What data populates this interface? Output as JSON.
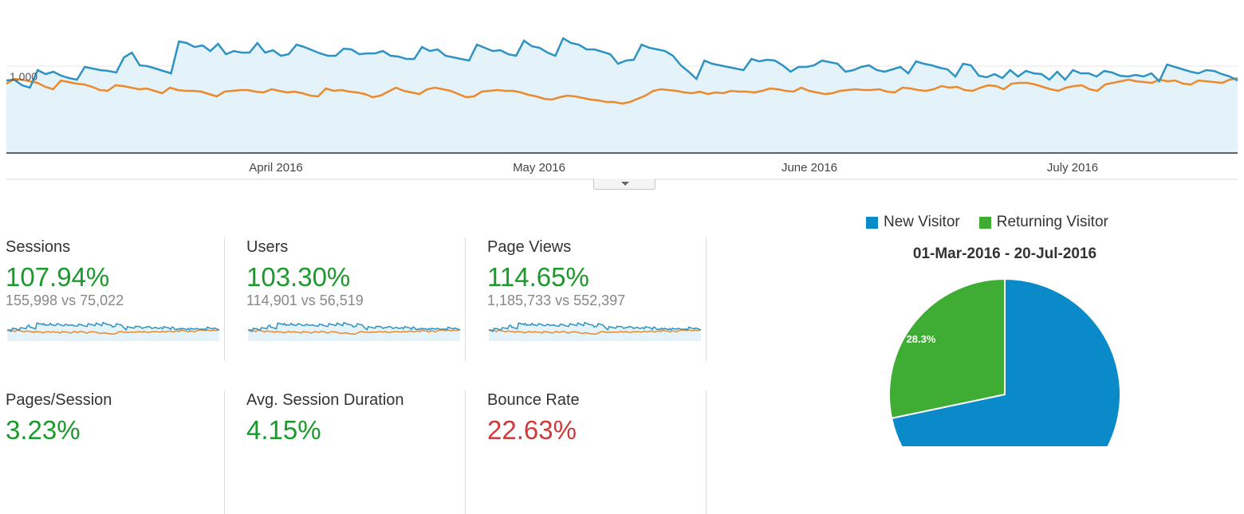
{
  "colors": {
    "new_series": "#2e93c4",
    "new_fill": "#e4f2f9",
    "compare_series": "#ea8a2e",
    "pie_new": "#0a8ac8",
    "pie_returning": "#3fac34",
    "positive": "#1a9a2a",
    "negative": "#d13a3a"
  },
  "chart_data": {
    "type": "line",
    "x_tick_labels": [
      "April 2016",
      "May 2016",
      "June 2016",
      "July 2016"
    ],
    "y_tick_labels": [
      "1,000"
    ],
    "series": [
      {
        "values": [
          990,
          1000,
          930,
          900,
          1120,
          1070,
          1100,
          1050,
          1020,
          1000,
          1160,
          1140,
          1120,
          1110,
          1090,
          1280,
          1340,
          1180,
          1170,
          1140,
          1110,
          1080,
          1480,
          1460,
          1410,
          1430,
          1360,
          1450,
          1320,
          1360,
          1340,
          1340,
          1460,
          1340,
          1370,
          1300,
          1320,
          1440,
          1410,
          1370,
          1330,
          1300,
          1300,
          1390,
          1380,
          1320,
          1330,
          1330,
          1360,
          1300,
          1290,
          1260,
          1260,
          1410,
          1360,
          1380,
          1300,
          1280,
          1260,
          1240,
          1440,
          1400,
          1360,
          1370,
          1320,
          1300,
          1490,
          1420,
          1400,
          1340,
          1300,
          1520,
          1460,
          1440,
          1380,
          1380,
          1350,
          1320,
          1200,
          1240,
          1250,
          1440,
          1400,
          1380,
          1360,
          1300,
          1180,
          1100,
          1010,
          1240,
          1200,
          1180,
          1160,
          1140,
          1120,
          1260,
          1230,
          1250,
          1240,
          1180,
          1100,
          1160,
          1160,
          1180,
          1240,
          1220,
          1200,
          1100,
          1120,
          1160,
          1180,
          1120,
          1100,
          1130,
          1160,
          1080,
          1230,
          1200,
          1180,
          1150,
          1130,
          1040,
          1200,
          1180,
          1050,
          1030,
          1070,
          1020,
          1120,
          1040,
          1110,
          1080,
          1070,
          1000,
          1100,
          1000,
          1120,
          1080,
          1080,
          1040,
          1110,
          1090,
          1050,
          1040,
          1060,
          1040,
          1080,
          980,
          1190,
          1160,
          1130,
          1100,
          1080,
          1120,
          1110,
          1070,
          1040,
          990
        ],
        "color": "#2e93c4"
      },
      {
        "values": [
          950,
          1010,
          1000,
          980,
          960,
          910,
          880,
          990,
          970,
          950,
          940,
          910,
          870,
          860,
          930,
          920,
          900,
          880,
          890,
          860,
          830,
          900,
          870,
          860,
          860,
          850,
          820,
          790,
          850,
          860,
          870,
          870,
          850,
          840,
          880,
          860,
          840,
          850,
          830,
          800,
          790,
          890,
          860,
          870,
          850,
          840,
          820,
          780,
          800,
          850,
          900,
          860,
          840,
          820,
          880,
          900,
          880,
          860,
          820,
          780,
          790,
          850,
          860,
          870,
          860,
          860,
          840,
          810,
          790,
          760,
          750,
          780,
          800,
          790,
          770,
          750,
          740,
          720,
          720,
          700,
          720,
          760,
          800,
          860,
          880,
          870,
          860,
          840,
          830,
          850,
          820,
          840,
          830,
          860,
          850,
          850,
          840,
          860,
          890,
          880,
          860,
          850,
          900,
          860,
          840,
          820,
          830,
          860,
          870,
          880,
          870,
          870,
          880,
          850,
          840,
          900,
          890,
          870,
          860,
          880,
          920,
          900,
          910,
          870,
          860,
          900,
          930,
          920,
          880,
          950,
          960,
          960,
          940,
          910,
          880,
          860,
          900,
          920,
          930,
          880,
          860,
          940,
          960,
          980,
          1000,
          980,
          970,
          960,
          1000,
          980,
          990,
          950,
          940,
          990,
          980,
          970,
          960,
          1000,
          1020
        ],
        "color": "#ea8a2e"
      }
    ],
    "grid": true
  },
  "metrics": [
    {
      "title": "Sessions",
      "value": "107.94%",
      "compare": "155,998 vs 75,022",
      "trend": "positive"
    },
    {
      "title": "Users",
      "value": "103.30%",
      "compare": "114,901 vs 56,519",
      "trend": "positive"
    },
    {
      "title": "Page Views",
      "value": "114.65%",
      "compare": "1,185,733 vs 552,397",
      "trend": "positive"
    },
    {
      "title": "Pages/Session",
      "value": "3.23%",
      "compare": "",
      "trend": "positive"
    },
    {
      "title": "Avg. Session Duration",
      "value": "4.15%",
      "compare": "",
      "trend": "positive"
    },
    {
      "title": "Bounce Rate",
      "value": "22.63%",
      "compare": "",
      "trend": "negative"
    }
  ],
  "pie": {
    "legend": [
      "New Visitor",
      "Returning Visitor"
    ],
    "title": "01-Mar-2016 - 20-Jul-2016",
    "slices": [
      {
        "label": "New Visitor",
        "value": 71.7
      },
      {
        "label": "Returning Visitor",
        "value": 28.3
      }
    ],
    "returning_label": "28.3%"
  }
}
